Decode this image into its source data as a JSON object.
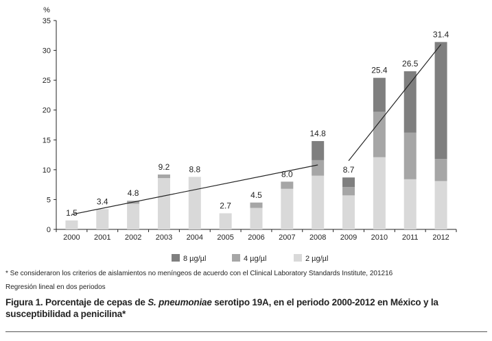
{
  "chart_data": {
    "type": "bar",
    "stacked": true,
    "ylabel": "%",
    "ylim": [
      0,
      35
    ],
    "yticks": [
      0,
      5,
      10,
      15,
      20,
      25,
      30,
      35
    ],
    "categories": [
      "2000",
      "2001",
      "2002",
      "2003",
      "2004",
      "2005",
      "2006",
      "2007",
      "2008",
      "2009",
      "2010",
      "2011",
      "2012"
    ],
    "series": [
      {
        "name": "2 µg/µl",
        "color": "#d9d9d9",
        "values": [
          1.5,
          3.4,
          4.3,
          8.6,
          8.8,
          2.7,
          3.6,
          6.8,
          9.0,
          5.7,
          12.1,
          8.4,
          8.1
        ]
      },
      {
        "name": "4 µg/µl",
        "color": "#a6a6a6",
        "values": [
          0,
          0,
          0.5,
          0.6,
          0,
          0,
          0.9,
          1.2,
          2.6,
          1.4,
          7.6,
          7.8,
          3.7
        ]
      },
      {
        "name": "8 µg/µl",
        "color": "#7f7f7f",
        "values": [
          0,
          0,
          0,
          0,
          0,
          0,
          0,
          0,
          3.2,
          1.6,
          5.7,
          10.3,
          19.6
        ]
      }
    ],
    "totals": [
      "1.5",
      "3.4",
      "4.8",
      "9.2",
      "8.8",
      "2.7",
      "4.5",
      "8.0",
      "14.8",
      "8.7",
      "25.4",
      "26.5",
      "31.4"
    ],
    "regression_lines": [
      {
        "from_category": "2000",
        "to_category": "2008",
        "y_start": 2.5,
        "y_end": 10.8
      },
      {
        "from_category": "2009",
        "to_category": "2012",
        "y_start": 11.5,
        "y_end": 31.0
      }
    ],
    "legend_order": [
      "8 µg/µl",
      "4 µg/µl",
      "2 µg/µl"
    ],
    "legend_position": "bottom-right"
  },
  "footnote": "* Se consideraron los criterios de aislamientos no meníngeos de acuerdo con el Clinical Laboratory Standards Institute, 201216",
  "note": "Regresión lineal en dos periodos",
  "caption": {
    "part1": "Figura 1. Porcentaje de cepas de ",
    "species": "S. pneumoniae",
    "part2": " serotipo 19A, en el periodo 2000-2012 en México y la susceptibilidad a penicilina*"
  }
}
